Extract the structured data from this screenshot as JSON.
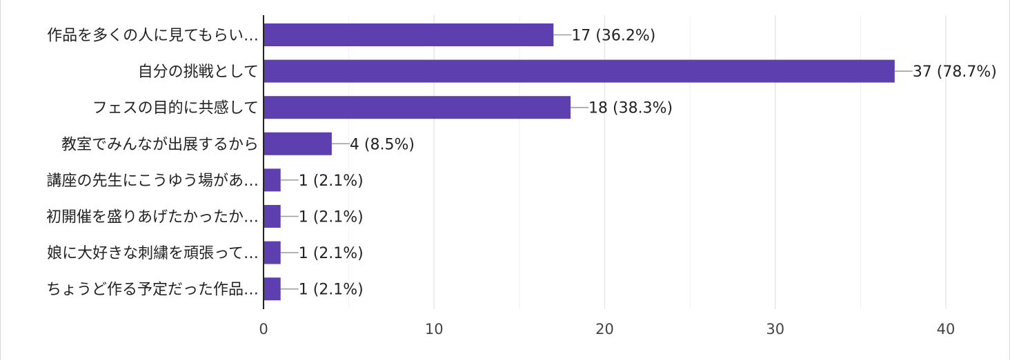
{
  "chart_data": {
    "type": "bar",
    "orientation": "horizontal",
    "categories": [
      "作品を多くの人に見てもらい…",
      "自分の挑戦として",
      "フェスの目的に共感して",
      "教室でみんなが出展するから",
      "講座の先生にこうゆう場があ…",
      "初開催を盛りあげたかったか…",
      "娘に大好きな刺繍を頑張って…",
      "ちょうど作る予定だった作品…"
    ],
    "values": [
      17,
      37,
      18,
      4,
      1,
      1,
      1,
      1
    ],
    "data_labels": [
      "17 (36.2%)",
      "37 (78.7%)",
      "18 (38.3%)",
      "4 (8.5%)",
      "1 (2.1%)",
      "1 (2.1%)",
      "1 (2.1%)",
      "1 (2.1%)"
    ],
    "xlim": [
      0,
      40
    ],
    "x_ticks": [
      0,
      10,
      20,
      30,
      40
    ],
    "minor_grid": [
      5,
      15,
      25,
      35
    ],
    "grid": true,
    "title": "",
    "xlabel": "",
    "ylabel": "",
    "colors": {
      "bar": "#5e3fb0",
      "axis": "#222222",
      "grid": "#e6e6e6",
      "minor_grid": "#f1f1f1",
      "leader": "#9a9a9a"
    }
  }
}
